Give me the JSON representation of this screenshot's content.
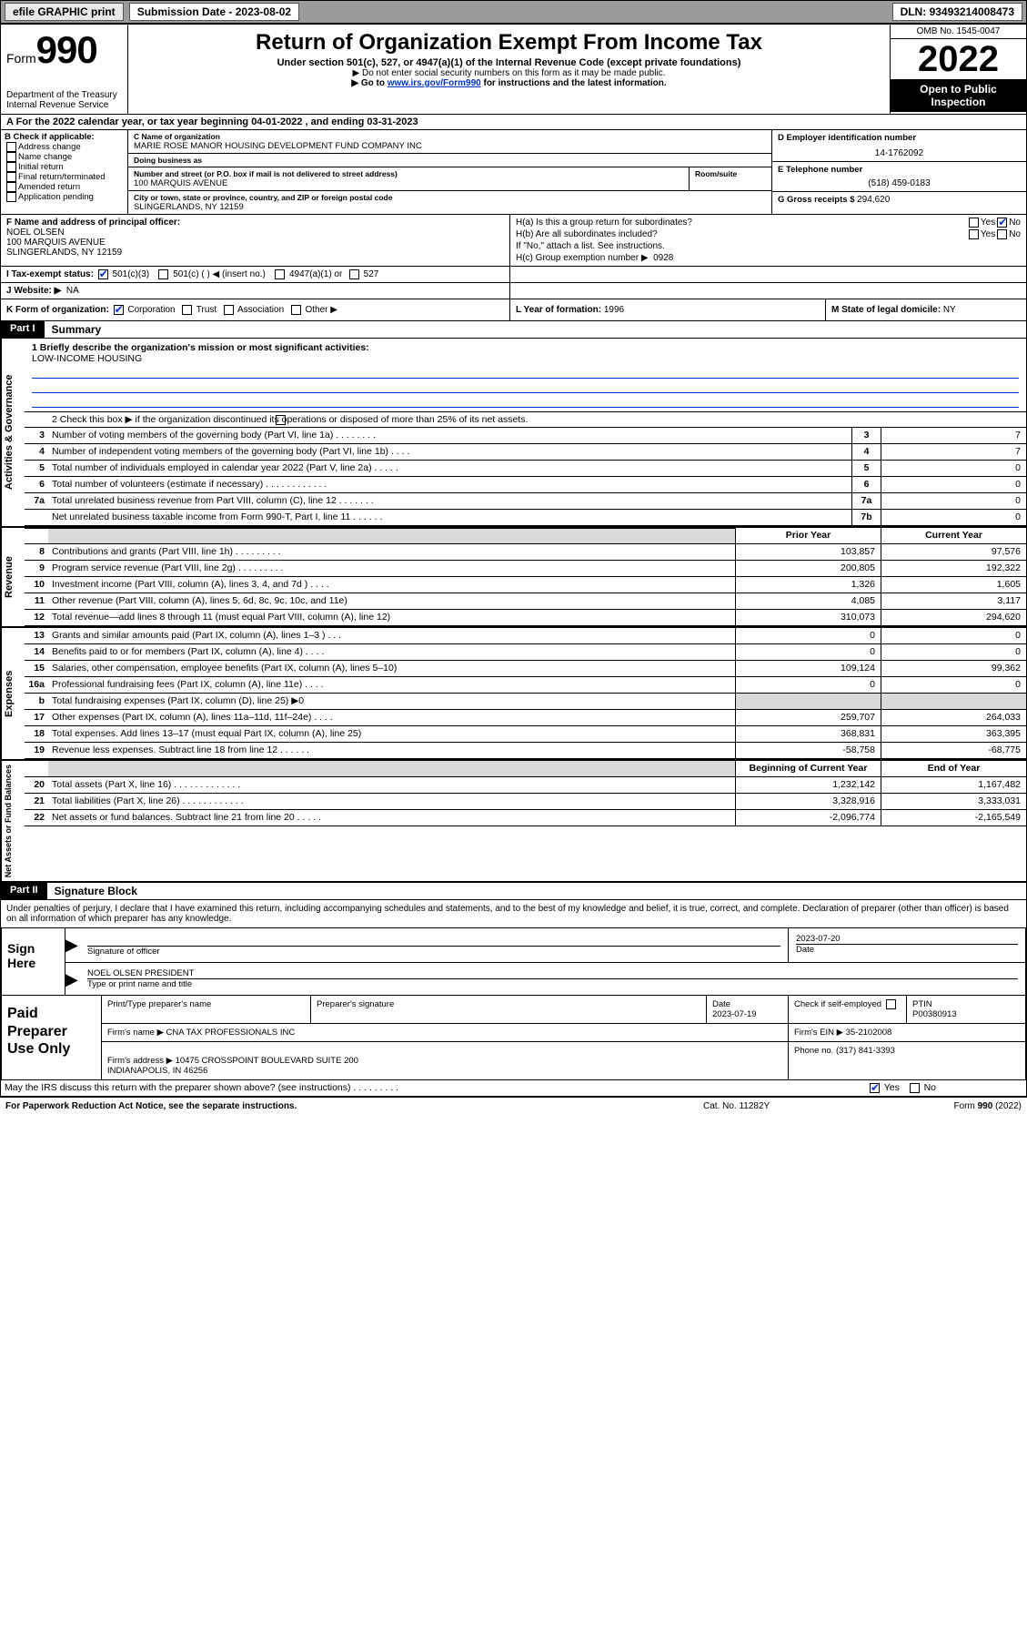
{
  "topbar": {
    "efile": "efile GRAPHIC print",
    "sub_label": "Submission Date - ",
    "sub_date": "2023-08-02",
    "dln_label": "DLN: ",
    "dln": "93493214008473"
  },
  "header": {
    "form_word": "Form",
    "form_num": "990",
    "dept": "Department of the Treasury",
    "irs": "Internal Revenue Service",
    "title": "Return of Organization Exempt From Income Tax",
    "subtitle": "Under section 501(c), 527, or 4947(a)(1) of the Internal Revenue Code (except private foundations)",
    "note1": "▶ Do not enter social security numbers on this form as it may be made public.",
    "note2_pre": "▶ Go to ",
    "note2_link": "www.irs.gov/Form990",
    "note2_post": " for instructions and the latest information.",
    "omb": "OMB No. 1545-0047",
    "year": "2022",
    "open": "Open to Public Inspection"
  },
  "row_a": "A For the 2022 calendar year, or tax year beginning 04-01-2022    , and ending 03-31-2023",
  "col_b": {
    "hdr": "B Check if applicable:",
    "opts": [
      "Address change",
      "Name change",
      "Initial return",
      "Final return/terminated",
      "Amended return",
      "Application pending"
    ]
  },
  "col_c": {
    "name_lbl": "C Name of organization",
    "name": "MARIE ROSE MANOR HOUSING DEVELOPMENT FUND COMPANY INC",
    "dba_lbl": "Doing business as",
    "dba": "",
    "addr_lbl": "Number and street (or P.O. box if mail is not delivered to street address)",
    "addr": "100 MARQUIS AVENUE",
    "room_lbl": "Room/suite",
    "city_lbl": "City or town, state or province, country, and ZIP or foreign postal code",
    "city": "SLINGERLANDS, NY  12159"
  },
  "col_d": {
    "ein_lbl": "D Employer identification number",
    "ein": "14-1762092",
    "tel_lbl": "E Telephone number",
    "tel": "(518) 459-0183",
    "gross_lbl": "G Gross receipts $ ",
    "gross": "294,620"
  },
  "section_f": {
    "lbl": "F  Name and address of principal officer:",
    "name": "NOEL OLSEN",
    "addr1": "100 MARQUIS AVENUE",
    "addr2": "SLINGERLANDS, NY  12159"
  },
  "section_h": {
    "ha": "H(a)  Is this a group return for subordinates?",
    "hb": "H(b)  Are all subordinates included?",
    "hb_note": "If \"No,\" attach a list. See instructions.",
    "hc": "H(c)  Group exemption number ▶",
    "hc_val": "0928",
    "yes": "Yes",
    "no": "No"
  },
  "row_i": {
    "lbl": "I   Tax-exempt status:",
    "o1": "501(c)(3)",
    "o2": "501(c) (  ) ◀ (insert no.)",
    "o3": "4947(a)(1) or",
    "o4": "527"
  },
  "row_j": {
    "lbl": "J   Website: ▶",
    "val": "NA"
  },
  "row_k": {
    "k": "K Form of organization:",
    "k_opts": [
      "Corporation",
      "Trust",
      "Association",
      "Other ▶"
    ],
    "l_lbl": "L Year of formation: ",
    "l_val": "1996",
    "m_lbl": "M State of legal domicile: ",
    "m_val": "NY"
  },
  "part1": {
    "hdr": "Part I",
    "title": "Summary",
    "q1_lbl": "1   Briefly describe the organization's mission or most significant activities:",
    "q1_val": "LOW-INCOME HOUSING",
    "q2": "2   Check this box ▶        if the organization discontinued its operations or disposed of more than 25% of its net assets.",
    "prior": "Prior Year",
    "current": "Current Year",
    "beg": "Beginning of Current Year",
    "end": "End of Year",
    "vtabs": [
      "Activities & Governance",
      "Revenue",
      "Expenses",
      "Net Assets or Fund Balances"
    ],
    "gov_rows": [
      {
        "n": "3",
        "d": "Number of voting members of the governing body (Part VI, line 1a)   .    .    .    .    .    .    .    .",
        "box": "3",
        "v": "7"
      },
      {
        "n": "4",
        "d": "Number of independent voting members of the governing body (Part VI, line 1b)   .    .    .    .",
        "box": "4",
        "v": "7"
      },
      {
        "n": "5",
        "d": "Total number of individuals employed in calendar year 2022 (Part V, line 2a)   .    .    .    .    .",
        "box": "5",
        "v": "0"
      },
      {
        "n": "6",
        "d": "Total number of volunteers (estimate if necessary)   .    .    .    .    .    .    .    .    .    .    .    .",
        "box": "6",
        "v": "0"
      },
      {
        "n": "7a",
        "d": "Total unrelated business revenue from Part VIII, column (C), line 12   .    .    .    .    .    .    .",
        "box": "7a",
        "v": "0"
      },
      {
        "n": "",
        "d": "Net unrelated business taxable income from Form 990-T, Part I, line 11   .    .    .    .    .    .",
        "box": "7b",
        "v": "0"
      }
    ],
    "rev_rows": [
      {
        "n": "8",
        "d": "Contributions and grants (Part VIII, line 1h)   .    .    .    .    .    .    .    .    .",
        "p": "103,857",
        "c": "97,576"
      },
      {
        "n": "9",
        "d": "Program service revenue (Part VIII, line 2g)   .    .    .    .    .    .    .    .    .",
        "p": "200,805",
        "c": "192,322"
      },
      {
        "n": "10",
        "d": "Investment income (Part VIII, column (A), lines 3, 4, and 7d )   .    .    .    .",
        "p": "1,326",
        "c": "1,605"
      },
      {
        "n": "11",
        "d": "Other revenue (Part VIII, column (A), lines 5, 6d, 8c, 9c, 10c, and 11e)",
        "p": "4,085",
        "c": "3,117"
      },
      {
        "n": "12",
        "d": "Total revenue—add lines 8 through 11 (must equal Part VIII, column (A), line 12)",
        "p": "310,073",
        "c": "294,620"
      }
    ],
    "exp_rows": [
      {
        "n": "13",
        "d": "Grants and similar amounts paid (Part IX, column (A), lines 1–3 )   .    .    .",
        "p": "0",
        "c": "0"
      },
      {
        "n": "14",
        "d": "Benefits paid to or for members (Part IX, column (A), line 4)   .    .    .    .",
        "p": "0",
        "c": "0"
      },
      {
        "n": "15",
        "d": "Salaries, other compensation, employee benefits (Part IX, column (A), lines 5–10)",
        "p": "109,124",
        "c": "99,362"
      },
      {
        "n": "16a",
        "d": "Professional fundraising fees (Part IX, column (A), line 11e)   .    .    .    .",
        "p": "0",
        "c": "0"
      },
      {
        "n": "b",
        "d": "Total fundraising expenses (Part IX, column (D), line 25) ▶0",
        "p": "",
        "c": "",
        "shade": true
      },
      {
        "n": "17",
        "d": "Other expenses (Part IX, column (A), lines 11a–11d, 11f–24e)   .    .    .    .",
        "p": "259,707",
        "c": "264,033"
      },
      {
        "n": "18",
        "d": "Total expenses. Add lines 13–17 (must equal Part IX, column (A), line 25)",
        "p": "368,831",
        "c": "363,395"
      },
      {
        "n": "19",
        "d": "Revenue less expenses. Subtract line 18 from line 12   .    .    .    .    .    .",
        "p": "-58,758",
        "c": "-68,775"
      }
    ],
    "net_rows": [
      {
        "n": "20",
        "d": "Total assets (Part X, line 16)   .    .    .    .    .    .    .    .    .    .    .    .    .",
        "p": "1,232,142",
        "c": "1,167,482"
      },
      {
        "n": "21",
        "d": "Total liabilities (Part X, line 26)   .    .    .    .    .    .    .    .    .    .    .    .",
        "p": "3,328,916",
        "c": "3,333,031"
      },
      {
        "n": "22",
        "d": "Net assets or fund balances. Subtract line 21 from line 20   .    .    .    .    .",
        "p": "-2,096,774",
        "c": "-2,165,549"
      }
    ]
  },
  "part2": {
    "hdr": "Part II",
    "title": "Signature Block",
    "decl": "Under penalties of perjury, I declare that I have examined this return, including accompanying schedules and statements, and to the best of my knowledge and belief, it is true, correct, and complete. Declaration of preparer (other than officer) is based on all information of which preparer has any knowledge.",
    "sign_here": "Sign Here",
    "sig_lbl": "Signature of officer",
    "date_lbl": "Date",
    "sig_date": "2023-07-20",
    "officer": "NOEL OLSEN  PRESIDENT",
    "officer_lbl": "Type or print name and title",
    "paid": "Paid Preparer Use Only",
    "prep_name_lbl": "Print/Type preparer's name",
    "prep_sig_lbl": "Preparer's signature",
    "prep_date_lbl": "Date",
    "prep_date": "2023-07-19",
    "self_lbl": "Check        if self-employed",
    "ptin_lbl": "PTIN",
    "ptin": "P00380913",
    "firm_name_lbl": "Firm's name     ▶ ",
    "firm_name": "CNA TAX PROFESSIONALS INC",
    "firm_ein_lbl": "Firm's EIN ▶ ",
    "firm_ein": "35-2102008",
    "firm_addr_lbl": "Firm's address ▶ ",
    "firm_addr": "10475 CROSSPOINT BOULEVARD SUITE 200\nINDIANAPOLIS, IN  46256",
    "phone_lbl": "Phone no. ",
    "phone": "(317) 841-3393",
    "discuss": "May the IRS discuss this return with the preparer shown above? (see instructions)   .    .    .    .    .    .    .    .    .",
    "yes": "Yes",
    "no": "No"
  },
  "footer": {
    "pra": "For Paperwork Reduction Act Notice, see the separate instructions.",
    "cat": "Cat. No. 11282Y",
    "form": "Form 990 (2022)"
  },
  "colors": {
    "link": "#0033cc",
    "shade": "#d9d9d9",
    "topbar": "#9b9b9b"
  }
}
